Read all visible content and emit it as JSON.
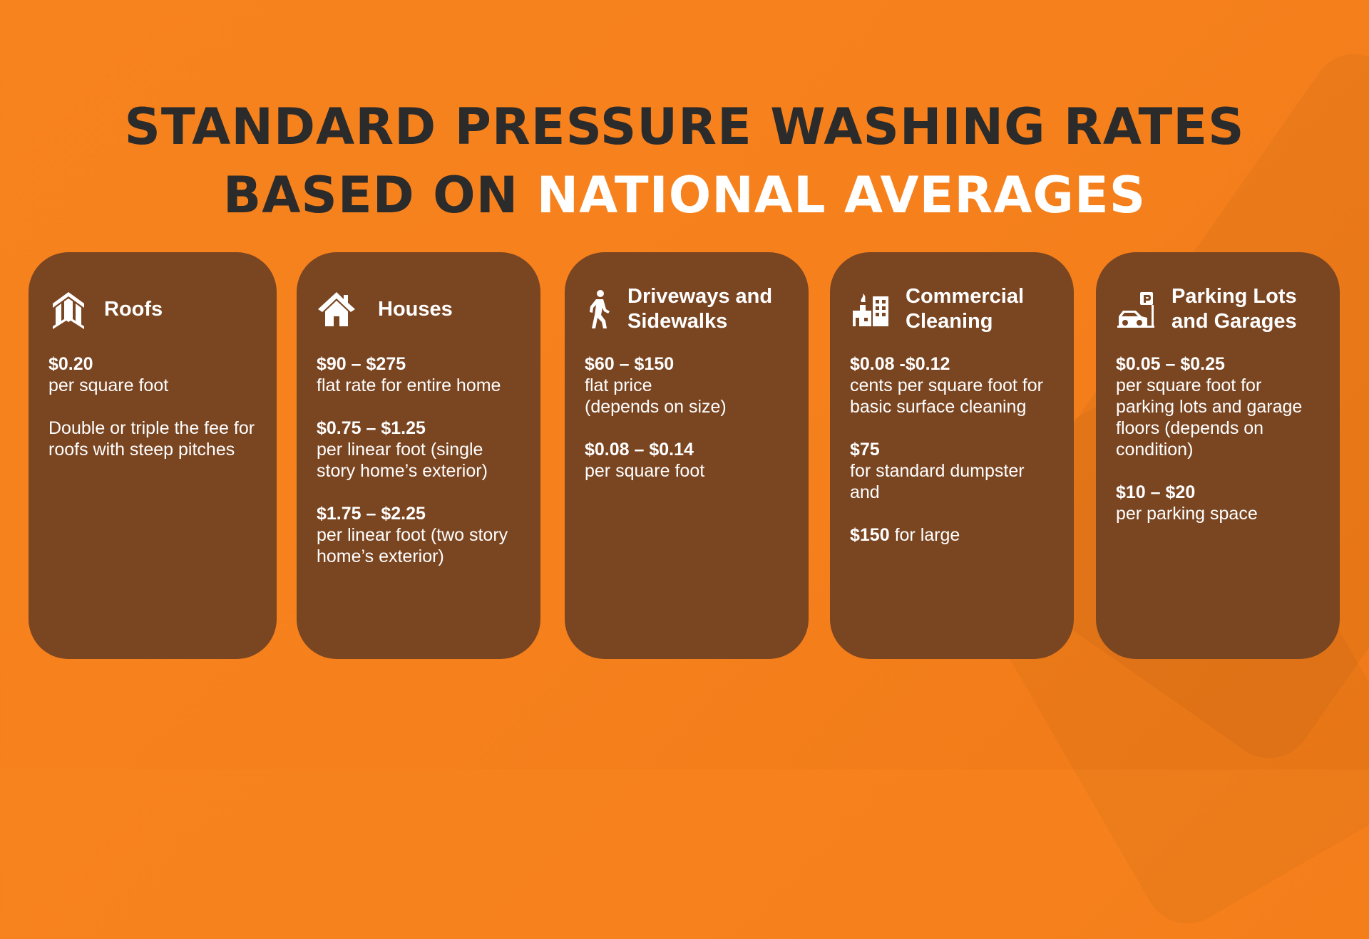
{
  "heading": {
    "line1": "STANDARD PRESSURE WASHING RATES",
    "line2_dark": "BASED ON ",
    "line2_light": "NATIONAL AVERAGES"
  },
  "cards": [
    {
      "icon": "roof-icon",
      "title": "Roofs",
      "entries": [
        {
          "price": "$0.20",
          "desc": "per square foot"
        },
        {
          "price": "",
          "desc": "Double or triple the fee for roofs with steep pitches"
        }
      ]
    },
    {
      "icon": "house-icon",
      "title": "Houses",
      "entries": [
        {
          "price": "$90 – $275",
          "desc": " flat rate for entire home"
        },
        {
          "price": "$0.75 – $1.25",
          "desc": " per linear foot (single story home’s exterior)"
        },
        {
          "price": "$1.75 – $2.25",
          "desc": " per linear foot (two story home’s exterior)"
        }
      ]
    },
    {
      "icon": "walking-person-icon",
      "title": "Driveways and\nSidewalks",
      "entries": [
        {
          "price": "$60 – $150",
          "desc": "flat price\n(depends on size)"
        },
        {
          "price": "$0.08 – $0.14",
          "desc": "per square foot"
        }
      ]
    },
    {
      "icon": "commercial-building-icon",
      "title": "Commercial\nCleaning",
      "entries": [
        {
          "price": "$0.08 -$0.12",
          "desc": "cents per square foot for basic surface cleaning"
        },
        {
          "price": "$75",
          "desc": " for standard dumpster and"
        },
        {
          "price": "$150",
          "desc": " for large",
          "inline": true
        }
      ]
    },
    {
      "icon": "parking-garage-icon",
      "title": "Parking Lots\nand Garages",
      "entries": [
        {
          "price": "$0.05 – $0.25",
          "desc": " per square foot for parking lots and garage floors (depends on condition)"
        },
        {
          "price": "$10 – $20",
          "desc": " per parking space"
        }
      ]
    }
  ]
}
